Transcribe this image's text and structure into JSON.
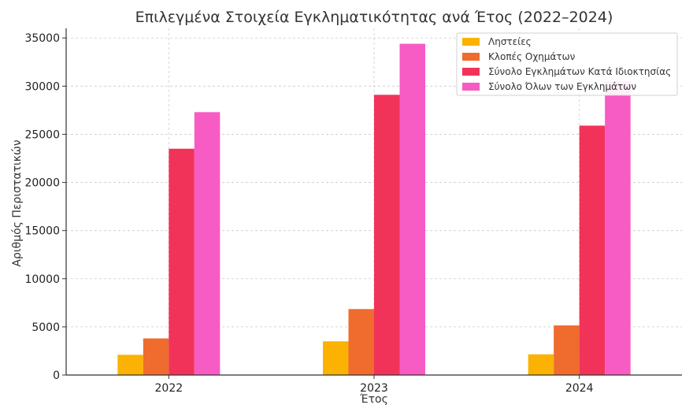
{
  "chart_data": {
    "type": "bar",
    "title": "Επιλεγμένα Στοιχεία Εγκληματικότητας ανά Έτος (2022–2024)",
    "xlabel": "Έτος",
    "ylabel": "Αριθμός Περιστατικών",
    "categories": [
      "2022",
      "2023",
      "2024"
    ],
    "ylim": [
      0,
      36000
    ],
    "yticks": [
      0,
      5000,
      10000,
      15000,
      20000,
      25000,
      30000,
      35000
    ],
    "grid": true,
    "legend_position": "top-right",
    "series": [
      {
        "name": "Ληστείες",
        "color": "#fbb202",
        "values": [
          2100,
          3500,
          2150
        ]
      },
      {
        "name": "Κλοπές Οχημάτων",
        "color": "#ef6b2e",
        "values": [
          3800,
          6850,
          5150
        ]
      },
      {
        "name": "Σύνολο Εγκλημάτων Κατά Ιδιοκτησίας",
        "color": "#f23359",
        "values": [
          23500,
          29100,
          25900
        ]
      },
      {
        "name": "Σύνολο Όλων των Εγκλημάτων",
        "color": "#f75bc4",
        "values": [
          27300,
          34400,
          30500
        ]
      }
    ]
  }
}
